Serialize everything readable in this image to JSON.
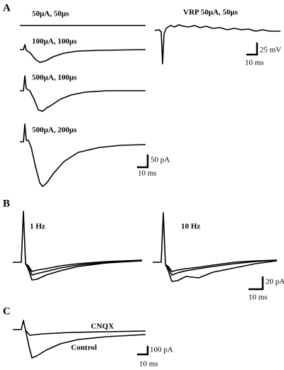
{
  "panels": [
    {
      "label": "A",
      "traces": [
        "50μA, 50μs",
        "100μA, 100μs",
        "500μA, 100μs",
        "500μA, 200μs",
        "VRP 50μA, 50μs"
      ],
      "scale_bars": [
        {
          "amplitude": "25 mV",
          "time": "10 ms"
        },
        {
          "amplitude": "50 pA",
          "time": "10 ms"
        }
      ]
    },
    {
      "label": "B",
      "traces": [
        "1 Hz",
        "10 Hz"
      ],
      "scale_bars": [
        {
          "amplitude": "20 pA",
          "time": "10 ms"
        }
      ]
    },
    {
      "label": "C",
      "traces": [
        "CNQX",
        "Control"
      ],
      "scale_bars": [
        {
          "amplitude": "100 pA",
          "time": "10 ms"
        }
      ]
    }
  ]
}
